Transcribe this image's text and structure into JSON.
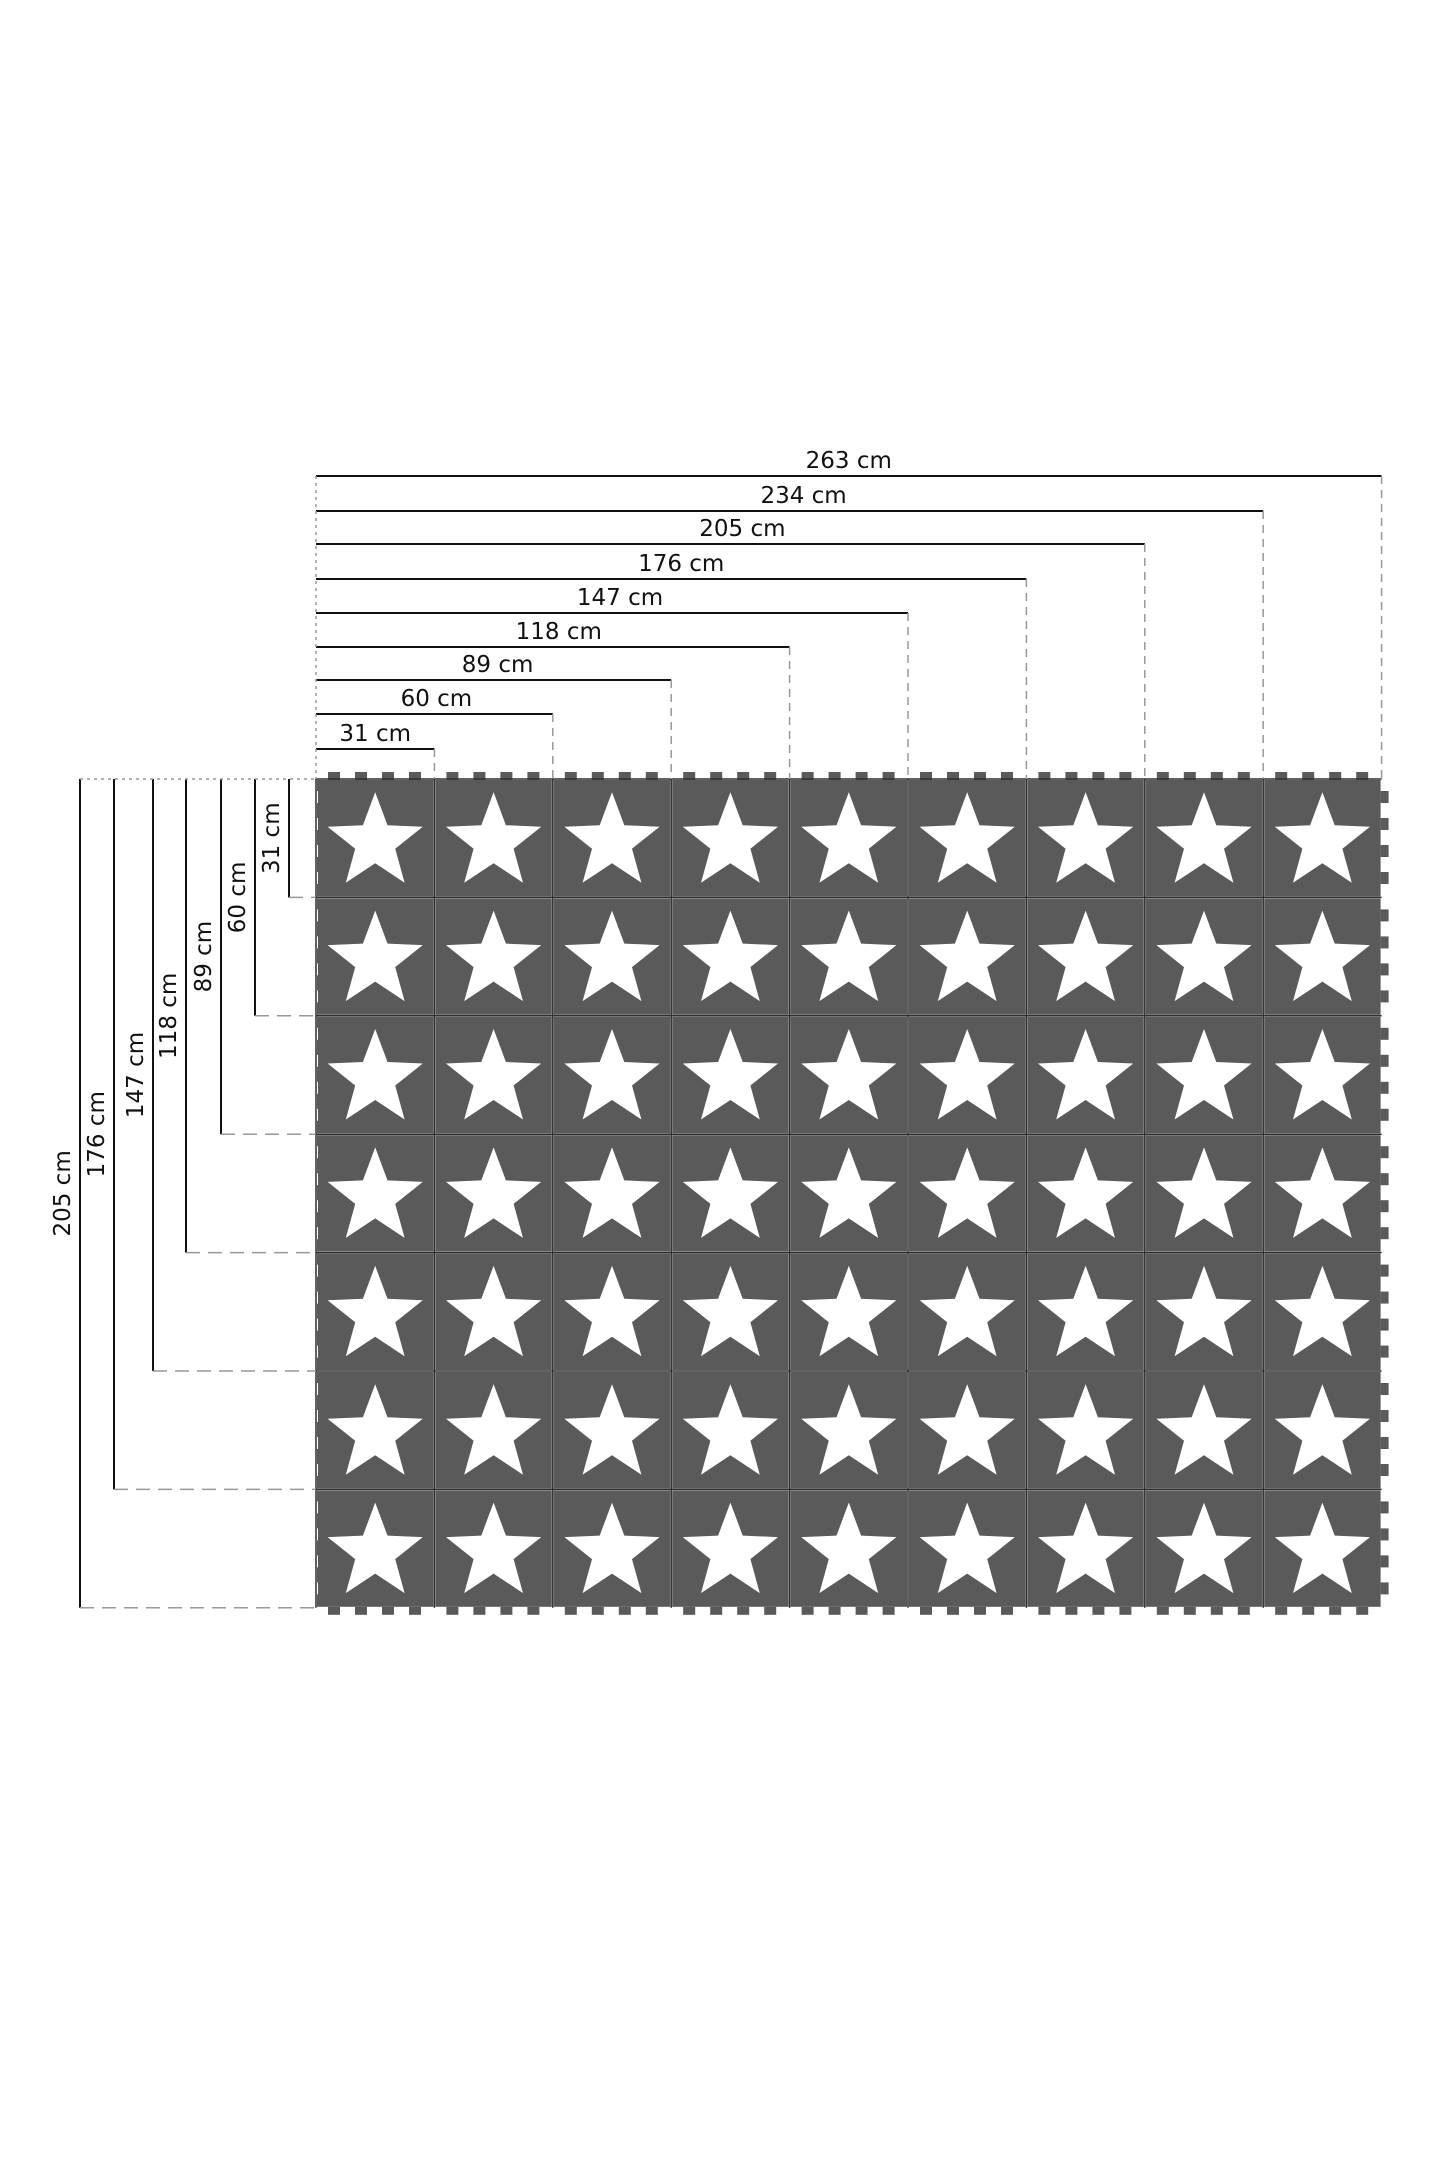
{
  "diagram": {
    "grid": {
      "columns": 9,
      "rows": 7
    },
    "colors": {
      "tile": "#5a5a5a",
      "star": "#ffffff",
      "line": "#111111",
      "dash": "#999999"
    },
    "width_labels": [
      "31 cm",
      "60 cm",
      "89 cm",
      "118 cm",
      "147 cm",
      "176 cm",
      "205 cm",
      "234 cm",
      "263 cm"
    ],
    "height_labels": [
      "31 cm",
      "60 cm",
      "89 cm",
      "118 cm",
      "147 cm",
      "176 cm",
      "205 cm"
    ]
  }
}
